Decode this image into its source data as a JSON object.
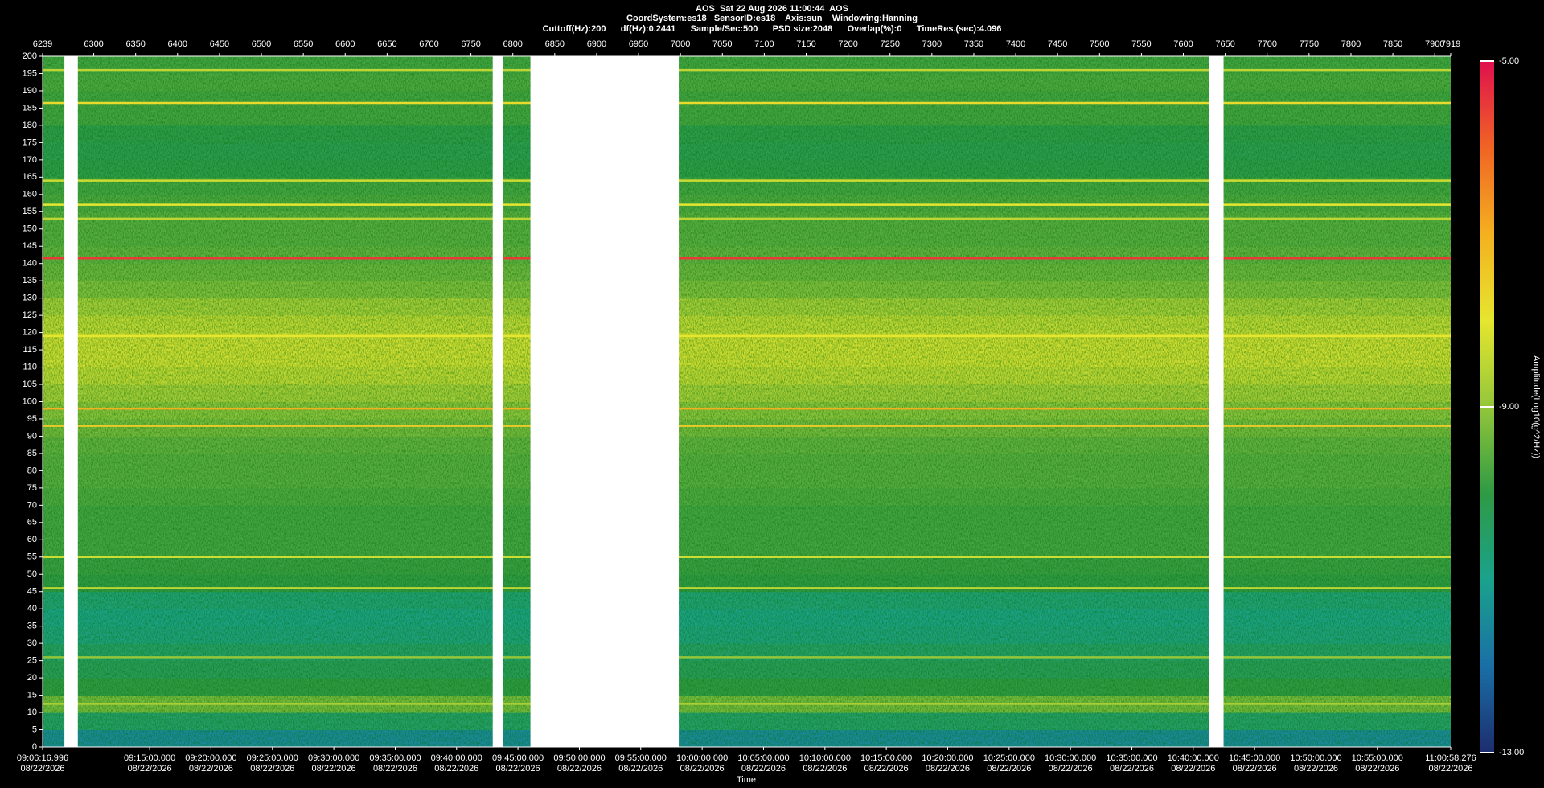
{
  "chart_data": {
    "type": "spectrogram",
    "title_lines": [
      "AOS  Sat 22 Aug 2026 11:00:44  AOS",
      "CoordSystem:es18   SensorID:es18    Axis:sun    Windowing:Hanning",
      "Cuttoff(Hz):200      df(Hz):0.2441      Sample/Sec:500      PSD size:2048      Overlap(%):0      TimeRes.(sec):4.096"
    ],
    "x_label": "Time",
    "z_label": "Amplitude(Log10(g^2/Hz))",
    "xlim": [
      6239,
      7919
    ],
    "xticks": [
      6239,
      6300,
      6350,
      6400,
      6450,
      6500,
      6550,
      6600,
      6650,
      6700,
      6750,
      6800,
      6850,
      6900,
      6950,
      7000,
      7050,
      7100,
      7150,
      7200,
      7250,
      7300,
      7350,
      7400,
      7450,
      7500,
      7550,
      7600,
      7650,
      7700,
      7750,
      7800,
      7850,
      7900,
      7919
    ],
    "time_ticks": [
      {
        "value": 6239,
        "label": "09:06:16.996"
      },
      {
        "value": 6366.7,
        "label": "09:15:00.000"
      },
      {
        "value": 6439.9,
        "label": "09:20:00.000"
      },
      {
        "value": 6513.2,
        "label": "09:25:00.000"
      },
      {
        "value": 6586.4,
        "label": "09:30:00.000"
      },
      {
        "value": 6659.7,
        "label": "09:35:00.000"
      },
      {
        "value": 6732.9,
        "label": "09:40:00.000"
      },
      {
        "value": 6806.1,
        "label": "09:45:00.000"
      },
      {
        "value": 6879.4,
        "label": "09:50:00.000"
      },
      {
        "value": 6952.6,
        "label": "09:55:00.000"
      },
      {
        "value": 7025.9,
        "label": "10:00:00.000"
      },
      {
        "value": 7099.1,
        "label": "10:05:00.000"
      },
      {
        "value": 7172.4,
        "label": "10:10:00.000"
      },
      {
        "value": 7245.6,
        "label": "10:15:00.000"
      },
      {
        "value": 7318.8,
        "label": "10:20:00.000"
      },
      {
        "value": 7392.1,
        "label": "10:25:00.000"
      },
      {
        "value": 7465.3,
        "label": "10:30:00.000"
      },
      {
        "value": 7538.6,
        "label": "10:35:00.000"
      },
      {
        "value": 7611.8,
        "label": "10:40:00.000"
      },
      {
        "value": 7685.0,
        "label": "10:45:00.000"
      },
      {
        "value": 7758.3,
        "label": "10:50:00.000"
      },
      {
        "value": 7831.5,
        "label": "10:55:00.000"
      },
      {
        "value": 7919,
        "label": "11:00:58.276"
      }
    ],
    "time_tick_date": "08/22/2026",
    "ylim": [
      0,
      200
    ],
    "yticks": [
      0,
      5,
      10,
      15,
      20,
      25,
      30,
      35,
      40,
      45,
      50,
      55,
      60,
      65,
      70,
      75,
      80,
      85,
      90,
      95,
      100,
      105,
      110,
      115,
      120,
      125,
      130,
      135,
      140,
      145,
      150,
      155,
      160,
      165,
      170,
      175,
      180,
      185,
      190,
      195,
      200
    ],
    "frequency_bins": [
      0,
      5,
      10,
      15,
      20,
      25,
      30,
      35,
      40,
      45,
      50,
      55,
      60,
      65,
      70,
      75,
      80,
      85,
      90,
      95,
      100,
      105,
      110,
      115,
      120,
      125,
      130,
      135,
      140,
      145,
      150,
      155,
      160,
      165,
      170,
      175,
      180,
      185,
      190,
      195,
      200
    ],
    "amplitude": [
      -11.5,
      -10.5,
      -9.3,
      -10,
      -10.3,
      -10.5,
      -10.8,
      -10.9,
      -10.7,
      -10,
      -9.9,
      -9.8,
      -9.8,
      -9.8,
      -9.7,
      -9.6,
      -9.6,
      -9.5,
      -9.3,
      -9.1,
      -8.8,
      -8.5,
      -8.3,
      -8.3,
      -8.5,
      -8.8,
      -9.2,
      -9.4,
      -9.5,
      -9.6,
      -9.6,
      -9.7,
      -9.8,
      -10.1,
      -10.2,
      -10.1,
      -9.8,
      -9.8,
      -9.7,
      -9.8
    ],
    "line_frequencies": [
      141.5,
      98,
      93,
      119,
      157,
      153,
      164,
      186.5,
      196,
      55,
      46,
      26,
      12.5
    ],
    "line_amplitudes": [
      -5.5,
      -7,
      -7.5,
      -8,
      -8,
      -8.5,
      -8.3,
      -7.8,
      -8.5,
      -8.3,
      -8.5,
      -9,
      -8.6
    ],
    "gaps": [
      [
        6265,
        6281
      ],
      [
        6776,
        6788
      ],
      [
        6821,
        6998
      ],
      [
        7631,
        7648
      ]
    ],
    "zlim": [
      -13,
      -5
    ],
    "zticks": [
      {
        "value": -5,
        "label": "-5.00"
      },
      {
        "value": -9,
        "label": "-9.00"
      },
      {
        "value": -13,
        "label": "-13.00"
      }
    ],
    "colorscale": [
      "#1c2d6e",
      "#1a6fa6",
      "#1aa28c",
      "#2f9a44",
      "#93c63a",
      "#e6e62e",
      "#f4b020",
      "#f06424",
      "#e0104e"
    ]
  }
}
